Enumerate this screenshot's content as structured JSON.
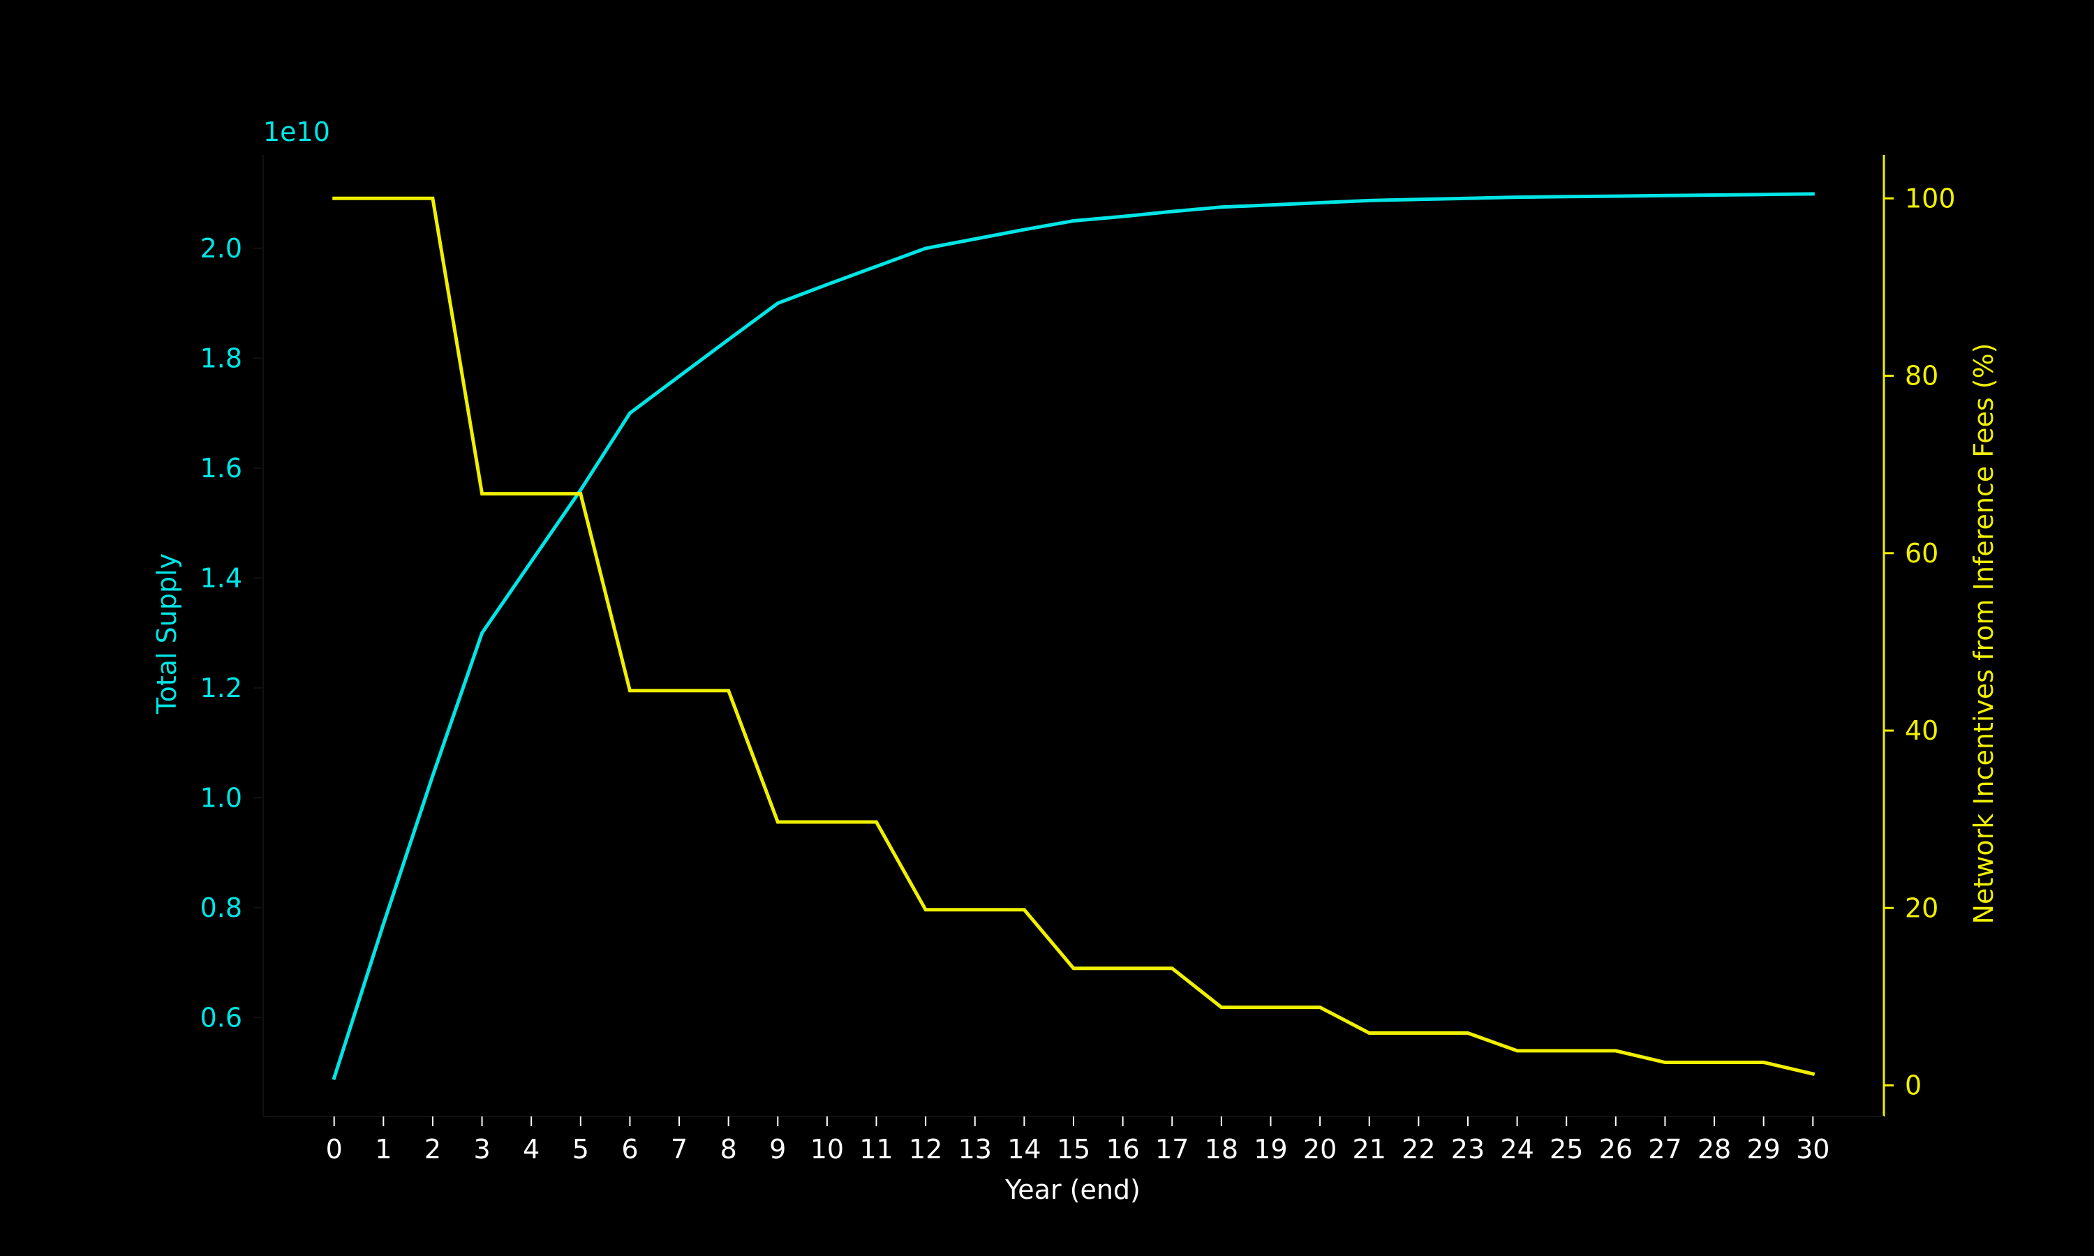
{
  "chart_data": {
    "type": "line",
    "title": "",
    "xlabel": "Year (end)",
    "x": [
      0,
      1,
      2,
      3,
      4,
      5,
      6,
      7,
      8,
      9,
      10,
      11,
      12,
      13,
      14,
      15,
      16,
      17,
      18,
      19,
      20,
      21,
      22,
      23,
      24,
      25,
      26,
      27,
      28,
      29,
      30
    ],
    "x_ticks": [
      0,
      1,
      2,
      3,
      4,
      5,
      6,
      7,
      8,
      9,
      10,
      11,
      12,
      13,
      14,
      15,
      16,
      17,
      18,
      19,
      20,
      21,
      22,
      23,
      24,
      25,
      26,
      27,
      28,
      29,
      30
    ],
    "y_left": {
      "label": "Total Supply",
      "offset_text": "1e10",
      "scale": 10000000000.0,
      "lim": [
        0.42,
        2.17
      ],
      "ticks": [
        0.6,
        0.8,
        1.0,
        1.2,
        1.4,
        1.6,
        1.8,
        2.0
      ],
      "tick_labels": [
        "0.6",
        "0.8",
        "1.0",
        "1.2",
        "1.4",
        "1.6",
        "1.8",
        "2.0"
      ],
      "color": "#00e5e5"
    },
    "y_right": {
      "label": "Network Incentives from Inference Fees (%)",
      "lim": [
        -3.5,
        104.9
      ],
      "ticks": [
        0,
        20,
        40,
        60,
        80,
        100
      ],
      "tick_labels": [
        "0",
        "20",
        "40",
        "60",
        "80",
        "100"
      ],
      "color": "#f0f000"
    },
    "series": [
      {
        "axis": "left",
        "color": "#00e5e5",
        "values": [
          4900000000.0,
          7700000000.0,
          10400000000.0,
          13000000000.0,
          14300000000.0,
          15600000000.0,
          17000000000.0,
          17670000000.0,
          18340000000.0,
          19000000000.0,
          19340000000.0,
          19670000000.0,
          20000000000.0,
          20170000000.0,
          20340000000.0,
          20500000000.0,
          20580000000.0,
          20670000000.0,
          20750000000.0,
          20790000000.0,
          20830000000.0,
          20870000000.0,
          20890000000.0,
          20910000000.0,
          20930000000.0,
          20940000000.0,
          20950000000.0,
          20960000000.0,
          20970000000.0,
          20980000000.0,
          20990000000.0
        ]
      },
      {
        "axis": "right",
        "color": "#f0f000",
        "values": [
          100,
          100,
          100,
          66.7,
          66.7,
          66.7,
          44.5,
          44.5,
          44.5,
          29.7,
          29.7,
          29.7,
          19.8,
          19.8,
          19.8,
          13.2,
          13.2,
          13.2,
          8.8,
          8.8,
          8.8,
          5.9,
          5.9,
          5.9,
          3.9,
          3.9,
          3.9,
          2.6,
          2.6,
          2.6,
          1.3
        ]
      }
    ],
    "grid": false,
    "legend": "none",
    "colors": {
      "background": "#000000",
      "x_axis_text": "#ffffff"
    }
  }
}
